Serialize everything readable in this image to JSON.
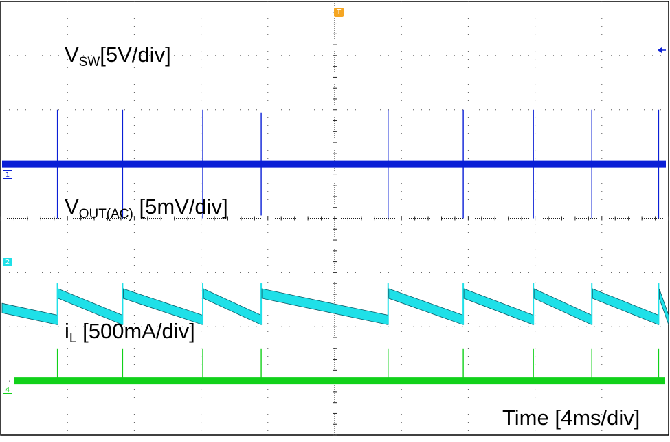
{
  "chart_data": {
    "type": "line",
    "title": "",
    "grid": true,
    "xlabel": "Time [4ms/div]",
    "xlim": [
      -20,
      20
    ],
    "x_unit": "ms",
    "divisions": {
      "horizontal": 10,
      "vertical": 8
    },
    "series": [
      {
        "name": "V",
        "name_sub": "SW",
        "name_suffix": "[5V/div]",
        "channel": "1",
        "color": "#0a1fd6",
        "baseline_div": 1.0,
        "spike_times_ms": [
          -16.6,
          -12.7,
          -7.9,
          -4.4,
          3.2,
          7.7,
          11.9,
          15.4,
          19.4
        ],
        "spike_height_div": [
          1.0,
          1.0,
          1.0,
          0.95,
          1.0,
          1.0,
          1.0,
          1.0,
          1.0
        ]
      },
      {
        "name": "V",
        "name_sub": "OUT(AC)",
        "name_suffix": "[5mV/div]",
        "channel": "2",
        "color": "#1fe0e8",
        "reset_times_ms": [
          -16.6,
          -12.7,
          -7.9,
          -4.4,
          3.2,
          7.7,
          11.9,
          15.4,
          19.4
        ],
        "ripple_top_div": -1.3,
        "ripple_bottom_div": -1.95
      },
      {
        "name": "i",
        "name_sub": "L",
        "name_suffix": "[500mA/div]",
        "channel": "4",
        "color": "#11d11a",
        "baseline_div": -3.0,
        "spike_times_ms": [
          -16.6,
          -12.7,
          -7.9,
          -4.4,
          3.2,
          7.7,
          11.9,
          15.4,
          19.4
        ],
        "spike_height_div": [
          0.6,
          0.6,
          0.6,
          0.6,
          0.6,
          0.6,
          0.6,
          0.6,
          0.6
        ]
      }
    ],
    "trigger_marker": "T"
  }
}
